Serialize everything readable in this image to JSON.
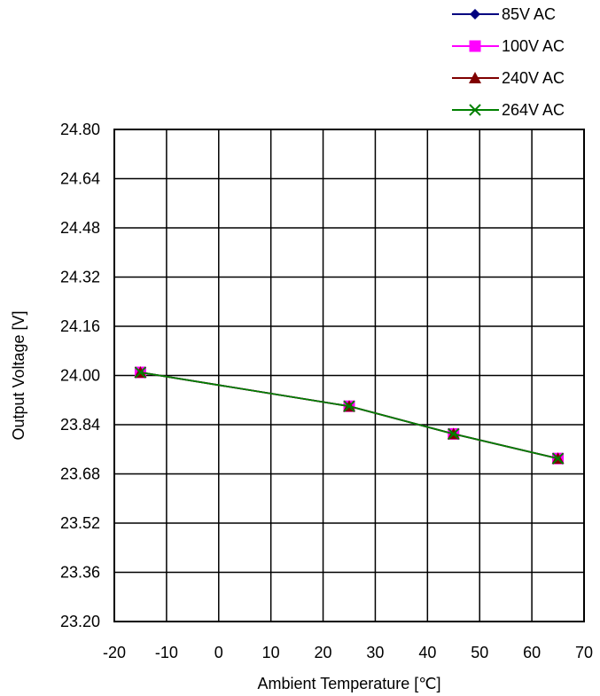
{
  "chart_data": {
    "type": "line",
    "xlabel": "Ambient Temperature [℃]",
    "ylabel": "Output Voltage [V]",
    "xlim": [
      -20,
      70
    ],
    "ylim": [
      23.2,
      24.8
    ],
    "x_ticks": [
      "-20",
      "-10",
      "0",
      "10",
      "20",
      "30",
      "40",
      "50",
      "60",
      "70"
    ],
    "y_ticks": [
      "23.20",
      "23.36",
      "23.52",
      "23.68",
      "23.84",
      "24.00",
      "24.16",
      "24.32",
      "24.48",
      "24.64",
      "24.80"
    ],
    "grid": true,
    "legend_position": "top-right, above plot",
    "x": [
      -15,
      25,
      45,
      65
    ],
    "series": [
      {
        "name": "85V AC",
        "values": [
          24.01,
          23.9,
          23.81,
          23.73
        ],
        "color": "#000080",
        "marker": "diamond"
      },
      {
        "name": "100V AC",
        "values": [
          24.01,
          23.9,
          23.81,
          23.73
        ],
        "color": "#ff00ff",
        "marker": "square"
      },
      {
        "name": "240V AC",
        "values": [
          24.01,
          23.9,
          23.81,
          23.73
        ],
        "color": "#800000",
        "marker": "triangle"
      },
      {
        "name": "264V AC",
        "values": [
          24.01,
          23.9,
          23.81,
          23.73
        ],
        "color": "#008000",
        "marker": "x"
      }
    ]
  }
}
